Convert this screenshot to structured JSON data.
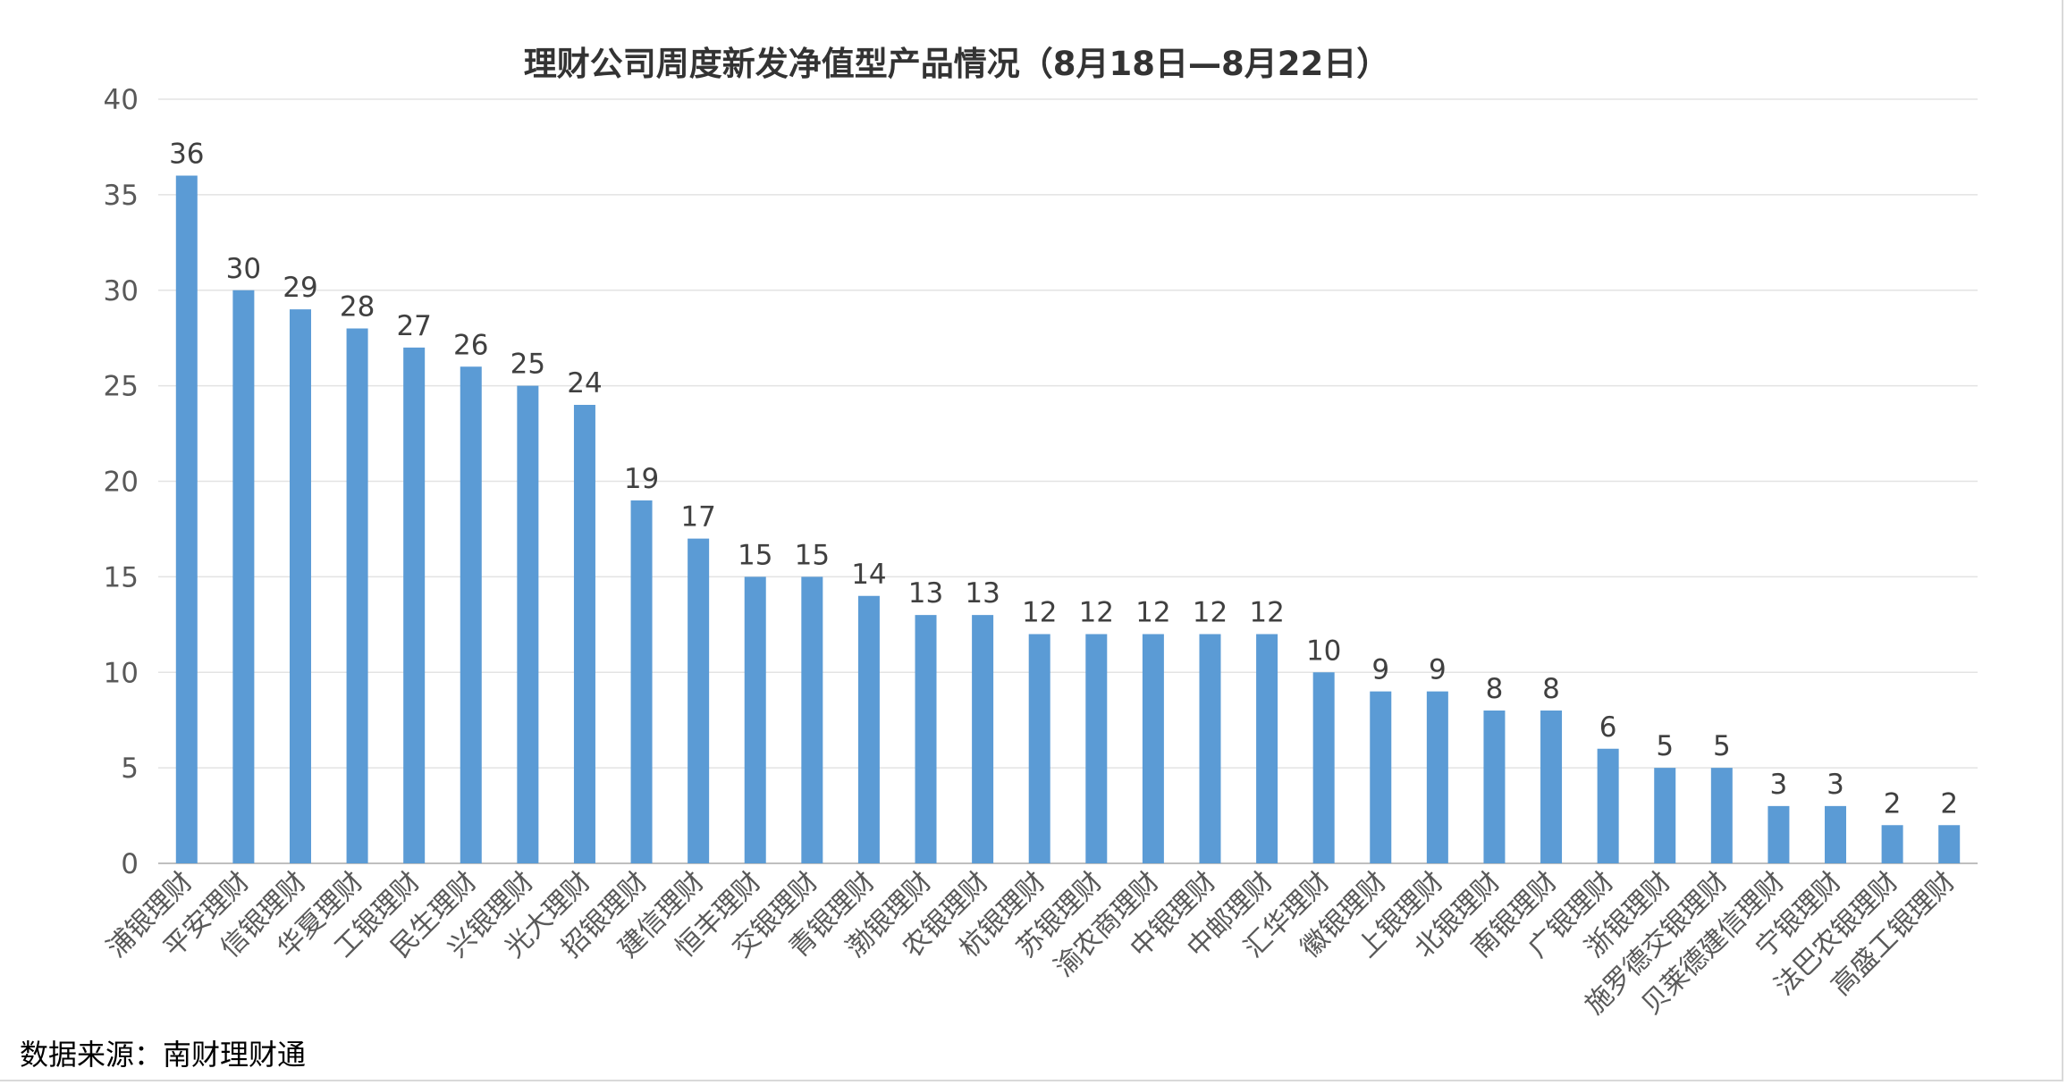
{
  "chart_data": {
    "type": "bar",
    "title": "理财公司周度新发净值型产品情况（8月18日—8月22日）",
    "xlabel": "",
    "ylabel": "",
    "ylim": [
      0,
      40
    ],
    "yticks": [
      0,
      5,
      10,
      15,
      20,
      25,
      30,
      35,
      40
    ],
    "grid": true,
    "legend": "none",
    "bar_color": "#5b9bd5",
    "categories": [
      "浦银理财",
      "平安理财",
      "信银理财",
      "华夏理财",
      "工银理财",
      "民生理财",
      "兴银理财",
      "光大理财",
      "招银理财",
      "建信理财",
      "恒丰理财",
      "交银理财",
      "青银理财",
      "渤银理财",
      "农银理财",
      "杭银理财",
      "苏银理财",
      "渝农商理财",
      "中银理财",
      "中邮理财",
      "汇华理财",
      "徽银理财",
      "上银理财",
      "北银理财",
      "南银理财",
      "广银理财",
      "浙银理财",
      "施罗德交银理财",
      "贝莱德建信理财",
      "宁银理财",
      "法巴农银理财",
      "高盛工银理财"
    ],
    "values": [
      36,
      30,
      29,
      28,
      27,
      26,
      25,
      24,
      19,
      17,
      15,
      15,
      14,
      13,
      13,
      12,
      12,
      12,
      12,
      12,
      10,
      9,
      9,
      8,
      8,
      6,
      5,
      5,
      3,
      3,
      2,
      2
    ]
  },
  "source": "数据来源：南财理财通"
}
